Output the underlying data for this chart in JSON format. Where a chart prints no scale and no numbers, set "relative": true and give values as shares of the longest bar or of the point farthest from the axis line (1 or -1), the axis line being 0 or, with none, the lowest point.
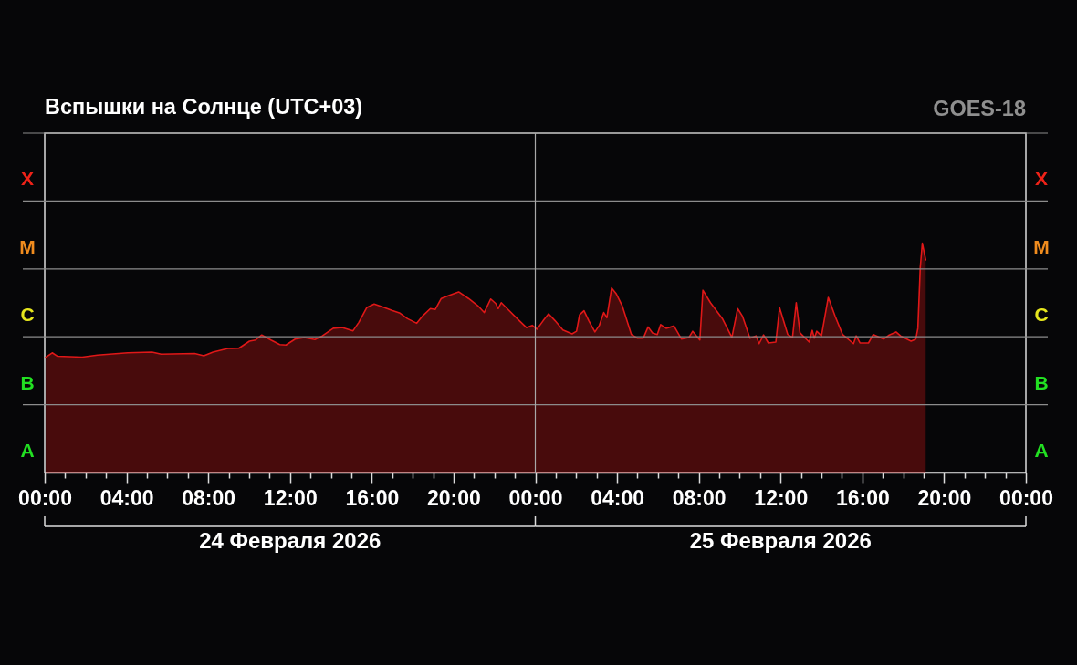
{
  "chart_data": {
    "type": "area",
    "title": "Вспышки на Солнце (UTC+03)",
    "subtitle": "GOES-18",
    "relative": true,
    "annotations": [
      "X",
      "X",
      "M",
      "M",
      "C",
      "C",
      "B",
      "B",
      "A",
      "A",
      "24 Февраля 2026",
      "25 Февраля 2026"
    ],
    "x": [
      "2026-02-24T00:03",
      "2026-02-24T00:22",
      "2026-02-24T00:38",
      "2026-02-24T01:50",
      "2026-02-24T02:35",
      "2026-02-24T04:04",
      "2026-02-24T05:15",
      "2026-02-24T05:42",
      "2026-02-24T07:20",
      "2026-02-24T07:47",
      "2026-02-24T08:14",
      "2026-02-24T08:58",
      "2026-02-24T09:30",
      "2026-02-24T10:01",
      "2026-02-24T10:19",
      "2026-02-24T10:37",
      "2026-02-24T11:04",
      "2026-02-24T11:30",
      "2026-02-24T11:48",
      "2026-02-24T12:15",
      "2026-02-24T12:42",
      "2026-02-24T13:13",
      "2026-02-24T13:35",
      "2026-02-24T14:07",
      "2026-02-24T14:33",
      "2026-02-24T15:05",
      "2026-02-24T15:22",
      "2026-02-24T15:45",
      "2026-02-24T16:07",
      "2026-02-24T16:34",
      "2026-02-24T17:01",
      "2026-02-24T17:23",
      "2026-02-24T17:45",
      "2026-02-24T18:12",
      "2026-02-24T18:30",
      "2026-02-24T18:52",
      "2026-02-24T19:06",
      "2026-02-24T19:24",
      "2026-02-24T19:46",
      "2026-02-24T20:15",
      "2026-02-24T20:44",
      "2026-02-24T21:11",
      "2026-02-24T21:30",
      "2026-02-24T21:49",
      "2026-02-24T22:04",
      "2026-02-24T22:11",
      "2026-02-24T22:20",
      "2026-02-24T22:40",
      "2026-02-24T23:07",
      "2026-02-24T23:34",
      "2026-02-24T23:51",
      "2026-02-25T00:05",
      "2026-02-25T00:23",
      "2026-02-25T00:39",
      "2026-02-25T00:58",
      "2026-02-25T01:21",
      "2026-02-25T01:48",
      "2026-02-25T02:01",
      "2026-02-25T02:10",
      "2026-02-25T02:23",
      "2026-02-25T02:37",
      "2026-02-25T02:55",
      "2026-02-25T03:08",
      "2026-02-25T03:21",
      "2026-02-25T03:30",
      "2026-02-25T03:44",
      "2026-02-25T03:57",
      "2026-02-25T04:15",
      "2026-02-25T04:42",
      "2026-02-25T05:00",
      "2026-02-25T05:17",
      "2026-02-25T05:31",
      "2026-02-25T05:44",
      "2026-02-25T05:58",
      "2026-02-25T06:08",
      "2026-02-25T06:24",
      "2026-02-25T06:47",
      "2026-02-25T07:09",
      "2026-02-25T07:31",
      "2026-02-25T07:42",
      "2026-02-25T08:03",
      "2026-02-25T08:12",
      "2026-02-25T08:34",
      "2026-02-25T09:10",
      "2026-02-25T09:37",
      "2026-02-25T09:54",
      "2026-02-25T10:08",
      "2026-02-25T10:30",
      "2026-02-25T10:48",
      "2026-02-25T10:57",
      "2026-02-25T11:10",
      "2026-02-25T11:24",
      "2026-02-25T11:46",
      "2026-02-25T11:57",
      "2026-02-25T12:21",
      "2026-02-25T12:35",
      "2026-02-25T12:46",
      "2026-02-25T12:57",
      "2026-02-25T13:24",
      "2026-02-25T13:33",
      "2026-02-25T13:39",
      "2026-02-25T13:46",
      "2026-02-25T14:00",
      "2026-02-25T14:20",
      "2026-02-25T14:40",
      "2026-02-25T15:02",
      "2026-02-25T15:34",
      "2026-02-25T15:42",
      "2026-02-25T15:53",
      "2026-02-25T16:18",
      "2026-02-25T16:32",
      "2026-02-25T17:03",
      "2026-02-25T17:19",
      "2026-02-25T17:39",
      "2026-02-25T17:52",
      "2026-02-25T18:23",
      "2026-02-25T18:37",
      "2026-02-25T18:43",
      "2026-02-25T18:50",
      "2026-02-25T18:56",
      "2026-02-25T19:06"
    ],
    "series": [
      {
        "color": "#e01818",
        "values": [
          0.503,
          0.522,
          0.507,
          0.503,
          0.512,
          0.522,
          0.525,
          0.516,
          0.519,
          0.509,
          0.525,
          0.541,
          0.542,
          0.573,
          0.578,
          0.6,
          0.578,
          0.558,
          0.556,
          0.582,
          0.589,
          0.58,
          0.596,
          0.629,
          0.633,
          0.618,
          0.655,
          0.719,
          0.735,
          0.721,
          0.706,
          0.695,
          0.671,
          0.651,
          0.684,
          0.715,
          0.711,
          0.759,
          0.772,
          0.788,
          0.759,
          0.728,
          0.698,
          0.757,
          0.737,
          0.715,
          0.741,
          0.711,
          0.671,
          0.632,
          0.642,
          0.625,
          0.662,
          0.692,
          0.662,
          0.622,
          0.605,
          0.616,
          0.688,
          0.706,
          0.662,
          0.613,
          0.642,
          0.698,
          0.675,
          0.805,
          0.781,
          0.728,
          0.602,
          0.586,
          0.586,
          0.635,
          0.609,
          0.602,
          0.645,
          0.629,
          0.639,
          0.582,
          0.589,
          0.616,
          0.578,
          0.795,
          0.741,
          0.669,
          0.589,
          0.715,
          0.682,
          0.586,
          0.596,
          0.562,
          0.6,
          0.565,
          0.569,
          0.719,
          0.602,
          0.589,
          0.741,
          0.609,
          0.569,
          0.62,
          0.586,
          0.616,
          0.596,
          0.764,
          0.682,
          0.602,
          0.562,
          0.596,
          0.565,
          0.565,
          0.602,
          0.582,
          0.6,
          0.613,
          0.596,
          0.573,
          0.582,
          0.629,
          0.894,
          1,
          0.927
        ]
      }
    ],
    "xlim": [
      "2026-02-24T00:00",
      "2026-02-26T00:00"
    ],
    "xticks": [
      {
        "value": "2026-02-24T00:00",
        "label": "00:00"
      },
      {
        "value": "2026-02-24T01:00",
        "label": null
      },
      {
        "value": "2026-02-24T02:00",
        "label": null
      },
      {
        "value": "2026-02-24T03:00",
        "label": null
      },
      {
        "value": "2026-02-24T04:00",
        "label": "04:00"
      },
      {
        "value": "2026-02-24T05:00",
        "label": null
      },
      {
        "value": "2026-02-24T06:00",
        "label": null
      },
      {
        "value": "2026-02-24T07:00",
        "label": null
      },
      {
        "value": "2026-02-24T08:00",
        "label": "08:00"
      },
      {
        "value": "2026-02-24T09:00",
        "label": null
      },
      {
        "value": "2026-02-24T10:00",
        "label": null
      },
      {
        "value": "2026-02-24T11:00",
        "label": null
      },
      {
        "value": "2026-02-24T12:00",
        "label": "12:00"
      },
      {
        "value": "2026-02-24T13:00",
        "label": null
      },
      {
        "value": "2026-02-24T14:00",
        "label": null
      },
      {
        "value": "2026-02-24T15:00",
        "label": null
      },
      {
        "value": "2026-02-24T16:00",
        "label": "16:00"
      },
      {
        "value": "2026-02-24T17:00",
        "label": null
      },
      {
        "value": "2026-02-24T18:00",
        "label": null
      },
      {
        "value": "2026-02-24T19:00",
        "label": null
      },
      {
        "value": "2026-02-24T20:00",
        "label": "20:00"
      },
      {
        "value": "2026-02-24T21:00",
        "label": null
      },
      {
        "value": "2026-02-24T22:00",
        "label": null
      },
      {
        "value": "2026-02-24T23:00",
        "label": null
      },
      {
        "value": "2026-02-25T00:00",
        "label": "00:00"
      },
      {
        "value": "2026-02-25T01:00",
        "label": null
      },
      {
        "value": "2026-02-25T02:00",
        "label": null
      },
      {
        "value": "2026-02-25T03:00",
        "label": null
      },
      {
        "value": "2026-02-25T04:00",
        "label": "04:00"
      },
      {
        "value": "2026-02-25T05:00",
        "label": null
      },
      {
        "value": "2026-02-25T06:00",
        "label": null
      },
      {
        "value": "2026-02-25T07:00",
        "label": null
      },
      {
        "value": "2026-02-25T08:00",
        "label": "08:00"
      },
      {
        "value": "2026-02-25T09:00",
        "label": null
      },
      {
        "value": "2026-02-25T10:00",
        "label": null
      },
      {
        "value": "2026-02-25T11:00",
        "label": null
      },
      {
        "value": "2026-02-25T12:00",
        "label": "12:00"
      },
      {
        "value": "2026-02-25T13:00",
        "label": null
      },
      {
        "value": "2026-02-25T14:00",
        "label": null
      },
      {
        "value": "2026-02-25T15:00",
        "label": null
      },
      {
        "value": "2026-02-25T16:00",
        "label": "16:00"
      },
      {
        "value": "2026-02-25T17:00",
        "label": null
      },
      {
        "value": "2026-02-25T18:00",
        "label": null
      },
      {
        "value": "2026-02-25T19:00",
        "label": null
      },
      {
        "value": "2026-02-25T20:00",
        "label": "20:00"
      },
      {
        "value": "2026-02-25T21:00",
        "label": null
      },
      {
        "value": "2026-02-25T22:00",
        "label": null
      },
      {
        "value": "2026-02-25T23:00",
        "label": null
      },
      {
        "value": "2026-02-26T00:00",
        "label": "00:00"
      }
    ],
    "ref_lines": [
      {
        "axis": "x",
        "value": "2026-02-25T00:00",
        "color": "#a8a8a8"
      },
      {
        "axis": "y",
        "value": 0.296
      },
      {
        "axis": "y",
        "value": 0.592
      },
      {
        "axis": "y",
        "value": 0.888
      },
      {
        "axis": "y",
        "value": 1.184
      },
      {
        "axis": "y",
        "value": 1.48
      }
    ]
  }
}
